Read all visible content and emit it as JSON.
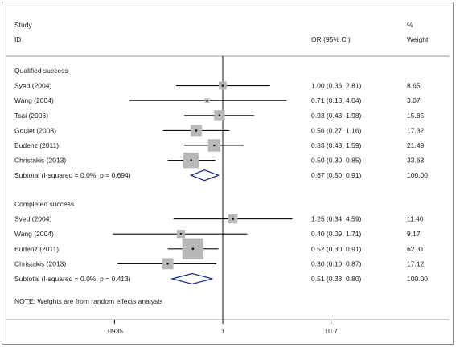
{
  "chart_data": {
    "type": "forest",
    "header": {
      "study_line1": "Study",
      "study_line2": "ID",
      "estimate": "OR (95% CI)",
      "weight_line1": "%",
      "weight_line2": "Weight"
    },
    "scale": "log",
    "xlim": [
      0.0935,
      10.7
    ],
    "ticks": [
      {
        "value": 0.0935,
        "label": ".0935"
      },
      {
        "value": 1,
        "label": "1"
      },
      {
        "value": 10.7,
        "label": "10.7"
      }
    ],
    "null_value": 1,
    "groups": [
      {
        "label": "Qualified success",
        "studies": [
          {
            "label": "Syed  (2004)",
            "or": 1.0,
            "lo": 0.36,
            "hi": 2.81,
            "ci_text": "1.00 (0.36, 2.81)",
            "weight": 8.65,
            "weight_text": "8.65"
          },
          {
            "label": "Wang  (2004)",
            "or": 0.71,
            "lo": 0.13,
            "hi": 4.04,
            "ci_text": "0.71 (0.13, 4.04)",
            "weight": 3.07,
            "weight_text": "3.07"
          },
          {
            "label": "Tsai  (2006)",
            "or": 0.93,
            "lo": 0.43,
            "hi": 1.98,
            "ci_text": "0.93 (0.43, 1.98)",
            "weight": 15.85,
            "weight_text": "15.85"
          },
          {
            "label": "Goulet  (2008)",
            "or": 0.56,
            "lo": 0.27,
            "hi": 1.16,
            "ci_text": "0.56 (0.27, 1.16)",
            "weight": 17.32,
            "weight_text": "17.32"
          },
          {
            "label": "Budenz  (2011)",
            "or": 0.83,
            "lo": 0.43,
            "hi": 1.59,
            "ci_text": "0.83 (0.43, 1.59)",
            "weight": 21.49,
            "weight_text": "21.49"
          },
          {
            "label": "Christakis  (2013)",
            "or": 0.5,
            "lo": 0.3,
            "hi": 0.85,
            "ci_text": "0.50 (0.30, 0.85)",
            "weight": 33.63,
            "weight_text": "33.63"
          }
        ],
        "subtotal": {
          "label": "Subtotal  (I-squared = 0.0%, p = 0.694)",
          "or": 0.67,
          "lo": 0.5,
          "hi": 0.91,
          "ci_text": "0.67 (0.50, 0.91)",
          "weight_text": "100.00"
        }
      },
      {
        "label": "Completed success",
        "studies": [
          {
            "label": "Syed  (2004)",
            "or": 1.25,
            "lo": 0.34,
            "hi": 4.59,
            "ci_text": "1.25 (0.34, 4.59)",
            "weight": 11.4,
            "weight_text": "11.40"
          },
          {
            "label": "Wang  (2004)",
            "or": 0.4,
            "lo": 0.09,
            "hi": 1.71,
            "ci_text": "0.40 (0.09, 1.71)",
            "weight": 9.17,
            "weight_text": "9.17"
          },
          {
            "label": "Budenz  (2011)",
            "or": 0.52,
            "lo": 0.3,
            "hi": 0.91,
            "ci_text": "0.52 (0.30, 0.91)",
            "weight": 62.31,
            "weight_text": "62.31"
          },
          {
            "label": "Christakis  (2013)",
            "or": 0.3,
            "lo": 0.1,
            "hi": 0.87,
            "ci_text": "0.30 (0.10, 0.87)",
            "weight": 17.12,
            "weight_text": "17.12"
          }
        ],
        "subtotal": {
          "label": "Subtotal  (I-squared = 0.0%, p = 0.413)",
          "or": 0.51,
          "lo": 0.33,
          "hi": 0.8,
          "ci_text": "0.51 (0.33, 0.80)",
          "weight_text": "100.00"
        }
      }
    ],
    "note": "NOTE: Weights are from random effects analysis",
    "colors": {
      "ci_line": "#111111",
      "weight_box": "#b8b8b8",
      "diamond": "#1a2a8a",
      "rules": "#9a9a9a"
    }
  }
}
